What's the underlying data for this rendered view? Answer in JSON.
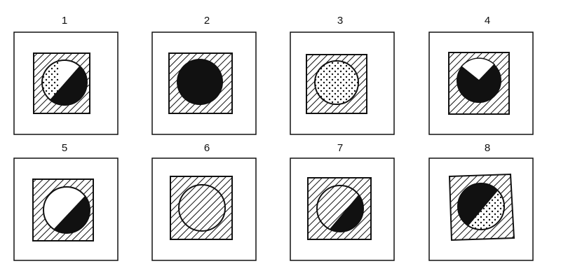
{
  "puzzle": {
    "figures": [
      {
        "label": "1"
      },
      {
        "label": "2"
      },
      {
        "label": "3"
      },
      {
        "label": "4"
      },
      {
        "label": "5"
      },
      {
        "label": "6"
      },
      {
        "label": "7"
      },
      {
        "label": "8"
      }
    ]
  }
}
